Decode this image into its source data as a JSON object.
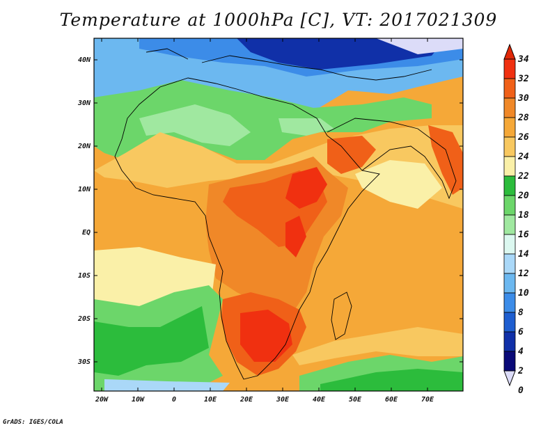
{
  "title": "Temperature at 1000hPa [C], VT: 2017021309",
  "footer": "GrADS: IGES/COLA",
  "map": {
    "lat_labels": [
      "40N",
      "30N",
      "20N",
      "10N",
      "EQ",
      "10S",
      "20S",
      "30S"
    ],
    "lon_labels": [
      "20W",
      "10W",
      "0",
      "10E",
      "20E",
      "30E",
      "40E",
      "50E",
      "60E",
      "70E"
    ]
  },
  "colorbar": {
    "labels": [
      "34",
      "32",
      "30",
      "28",
      "26",
      "24",
      "22",
      "20",
      "18",
      "16",
      "14",
      "12",
      "10",
      "8",
      "6",
      "4",
      "2",
      "0"
    ],
    "colors": [
      "#f03010",
      "#f06018",
      "#f08828",
      "#f5a838",
      "#f8c860",
      "#faf0a8",
      "#2cbc3c",
      "#6cd66a",
      "#a0e8a0",
      "#dcf8f0",
      "#aad8f8",
      "#6cb8f0",
      "#3c8ce8",
      "#1e5ed0",
      "#1030a8",
      "#0a0a78"
    ]
  }
}
